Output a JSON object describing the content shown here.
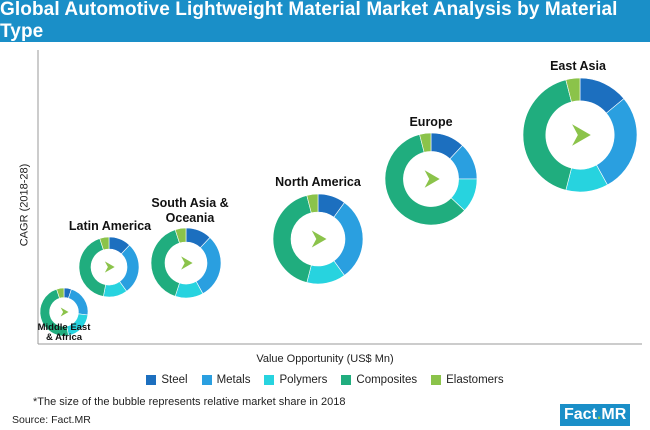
{
  "header": {
    "title": "Global Automotive Lightweight Material Market Analysis by Material Type"
  },
  "chart_data": {
    "type": "bubble-donut",
    "title": "Global Automotive Lightweight Material Market Analysis by Material Type",
    "xlabel": "Value Opportunity (US$ Mn)",
    "ylabel": "CAGR (2018-28)",
    "categories": [
      "Steel",
      "Metals",
      "Polymers",
      "Composites",
      "Elastomers"
    ],
    "colors": [
      "#1c6fbf",
      "#2a9fe0",
      "#27d3df",
      "#20ad7e",
      "#8bc34a"
    ],
    "regions": [
      {
        "name": "Middle East & Africa",
        "label_lines": [
          "Middle East",
          "& Africa"
        ],
        "size": 1.0,
        "shares": [
          0.05,
          0.22,
          0.2,
          0.48,
          0.05
        ]
      },
      {
        "name": "Latin America",
        "label_lines": [
          "Latin America"
        ],
        "size": 1.25,
        "shares": [
          0.12,
          0.28,
          0.13,
          0.42,
          0.05
        ]
      },
      {
        "name": "South Asia & Oceania",
        "label_lines": [
          "South Asia &",
          "Oceania"
        ],
        "size": 1.45,
        "shares": [
          0.12,
          0.3,
          0.13,
          0.4,
          0.05
        ]
      },
      {
        "name": "North America",
        "label_lines": [
          "North America"
        ],
        "size": 1.85,
        "shares": [
          0.1,
          0.3,
          0.14,
          0.42,
          0.04
        ]
      },
      {
        "name": "Europe",
        "label_lines": [
          "Europe"
        ],
        "size": 1.9,
        "shares": [
          0.12,
          0.13,
          0.12,
          0.59,
          0.04
        ]
      },
      {
        "name": "East Asia",
        "label_lines": [
          "East Asia"
        ],
        "size": 2.2,
        "shares": [
          0.14,
          0.28,
          0.12,
          0.42,
          0.04
        ]
      }
    ],
    "grid": false,
    "legend": "bottom"
  },
  "footnote": "*The size of the bubble represents relative market share in 2018",
  "source": "Source: Fact.MR",
  "logo": {
    "text_main": "Fact",
    "text_dot": ".",
    "text_end": "MR"
  }
}
